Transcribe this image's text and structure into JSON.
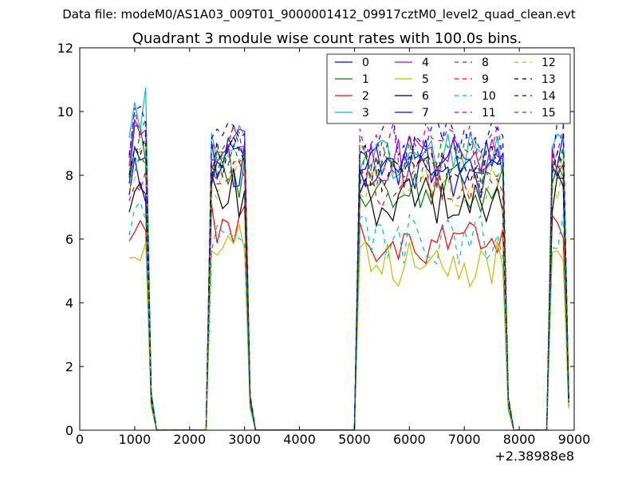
{
  "suptitle": "Data file: modeM0/AS1A03_009T01_9000001412_09917cztM0_level2_quad_clean.evt",
  "chart_data": {
    "type": "line",
    "title": "Quadrant 3 module wise count rates with 100.0s bins.",
    "xlabel": "",
    "ylabel": "",
    "x_offset_label": "+2.38988e8",
    "xlim": [
      0,
      9000
    ],
    "ylim": [
      0,
      12
    ],
    "xticks": [
      0,
      1000,
      2000,
      3000,
      4000,
      5000,
      6000,
      7000,
      8000,
      9000
    ],
    "yticks": [
      0,
      2,
      4,
      6,
      8,
      10,
      12
    ],
    "grid": false,
    "legend_position": "top-right",
    "legend_columns": 4,
    "x_units": "seconds (axis offset +2.38988e8)",
    "segments": [
      {
        "x_start": 900,
        "x_end": 1300
      },
      {
        "x_start": 2300,
        "x_end": 3100
      },
      {
        "x_start": 5000,
        "x_end": 7800
      },
      {
        "x_start": 8500,
        "x_end": 8900
      }
    ],
    "series": [
      {
        "name": "0",
        "color": "#0000ff",
        "style": "solid",
        "levels": [
          8.6,
          8.3,
          8.5,
          8.5
        ]
      },
      {
        "name": "1",
        "color": "#008000",
        "style": "solid",
        "levels": [
          8.8,
          8.0,
          7.6,
          7.6
        ]
      },
      {
        "name": "2",
        "color": "#ff0000",
        "style": "solid",
        "levels": [
          6.6,
          6.3,
          5.8,
          6.6
        ]
      },
      {
        "name": "3",
        "color": "#00bfbf",
        "style": "solid",
        "levels": [
          10.2,
          9.0,
          8.6,
          8.8
        ]
      },
      {
        "name": "4",
        "color": "#bf00bf",
        "style": "solid",
        "levels": [
          9.2,
          8.9,
          8.4,
          8.3
        ]
      },
      {
        "name": "5",
        "color": "#bfbf00",
        "style": "solid",
        "levels": [
          6.0,
          5.7,
          5.2,
          5.6
        ]
      },
      {
        "name": "6",
        "color": "#000000",
        "style": "solid",
        "levels": [
          7.6,
          7.4,
          7.2,
          7.3
        ]
      },
      {
        "name": "7",
        "color": "#0000ff",
        "style": "solid",
        "levels": [
          8.2,
          8.4,
          8.0,
          8.3
        ]
      },
      {
        "name": "8",
        "color": "#008000",
        "style": "dashed",
        "levels": [
          9.1,
          8.7,
          8.5,
          8.6
        ]
      },
      {
        "name": "9",
        "color": "#ff0000",
        "style": "dashed",
        "levels": [
          8.0,
          8.0,
          7.8,
          7.7
        ]
      },
      {
        "name": "10",
        "color": "#00bfbf",
        "style": "dashed",
        "levels": [
          6.8,
          6.2,
          6.0,
          6.2
        ]
      },
      {
        "name": "11",
        "color": "#bf00bf",
        "style": "dashed",
        "levels": [
          9.5,
          9.1,
          8.9,
          8.9
        ]
      },
      {
        "name": "12",
        "color": "#bfbf00",
        "style": "dashed",
        "levels": [
          8.4,
          8.0,
          7.7,
          7.8
        ]
      },
      {
        "name": "13",
        "color": "#000000",
        "style": "dashed",
        "levels": [
          8.9,
          8.5,
          8.2,
          8.2
        ]
      },
      {
        "name": "14",
        "color": "#0000ff",
        "style": "dashed",
        "levels": [
          9.6,
          9.3,
          9.1,
          9.2
        ]
      },
      {
        "name": "15",
        "color": "#008000",
        "style": "dashed",
        "levels": [
          8.8,
          8.5,
          8.3,
          8.4
        ]
      }
    ]
  }
}
